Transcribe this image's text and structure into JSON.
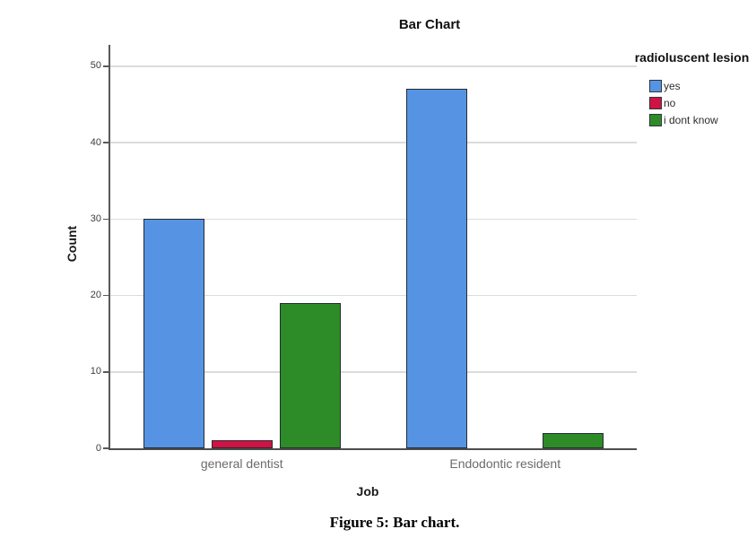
{
  "figure": {
    "caption": "Figure 5: Bar chart."
  },
  "chart_data": {
    "type": "bar",
    "title": "Bar Chart",
    "xlabel": "Job",
    "ylabel": "Count",
    "legend_title": "radioluscent lesion",
    "legend_position": "right",
    "categories": [
      "general dentist",
      "Endodontic resident"
    ],
    "series": [
      {
        "name": "yes",
        "color": "#5694e3",
        "values": [
          30,
          47
        ]
      },
      {
        "name": "no",
        "color": "#d01343",
        "values": [
          1,
          0
        ]
      },
      {
        "name": "i dont know",
        "color": "#2e8c28",
        "values": [
          19,
          2
        ]
      }
    ],
    "yticks": [
      0,
      10,
      20,
      30,
      40,
      50
    ],
    "ylim": [
      0,
      52.8
    ],
    "grid": true
  }
}
